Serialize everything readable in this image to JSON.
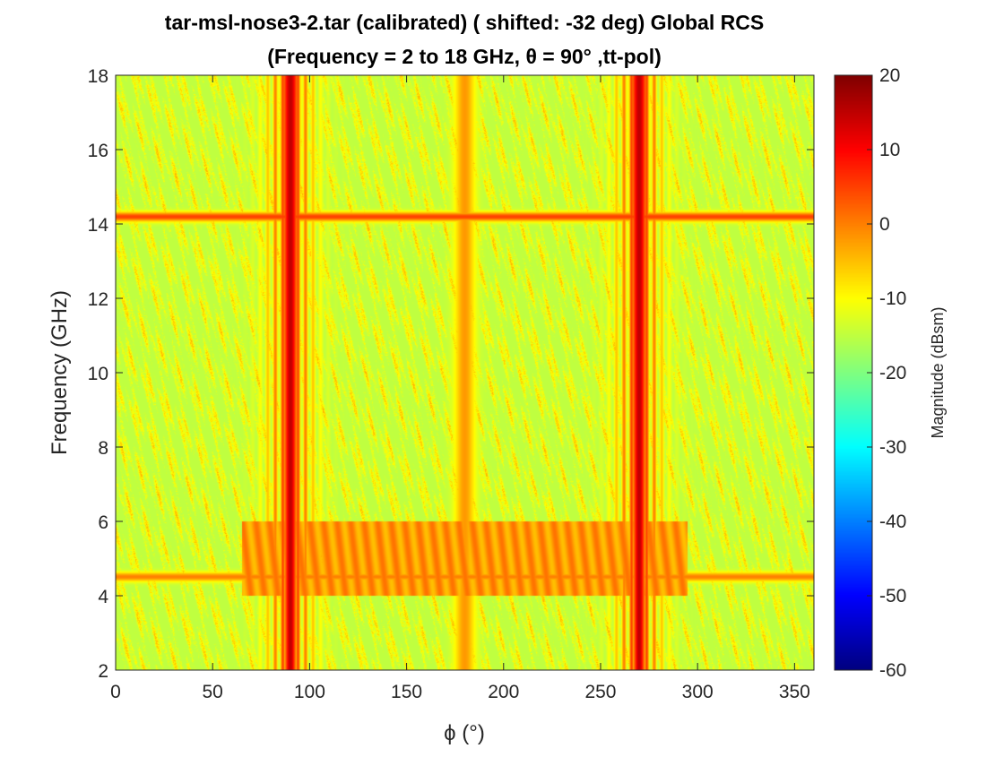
{
  "chart_data": {
    "type": "heatmap",
    "title_lines": [
      "tar-msl-nose3-2.tar (calibrated) ( shifted: -32 deg) Global RCS",
      "(Frequency = 2 to 18 GHz, θ = 90° ,tt-pol)"
    ],
    "xlabel": "ϕ (°)",
    "ylabel": "Frequency (GHz)",
    "xlim": [
      0,
      360
    ],
    "ylim": [
      2,
      18
    ],
    "x_ticks": [
      0,
      50,
      100,
      150,
      200,
      250,
      300,
      350
    ],
    "y_ticks": [
      2,
      4,
      6,
      8,
      10,
      12,
      14,
      16,
      18
    ],
    "colorbar": {
      "label": "Magnitude (dBsm)",
      "range": [
        -60,
        20
      ],
      "ticks": [
        20,
        10,
        0,
        -10,
        -20,
        -30,
        -40,
        -50,
        -60
      ],
      "colormap": "jet"
    },
    "background_level_dbsm": -15,
    "features": [
      {
        "kind": "vertical",
        "name": "broadside-left",
        "phi": 90,
        "freq_range": [
          2,
          18
        ],
        "peak_dbsm": 15
      },
      {
        "kind": "vertical",
        "name": "broadside-right",
        "phi": 270,
        "freq_range": [
          2,
          18
        ],
        "peak_dbsm": 15
      },
      {
        "kind": "vertical",
        "name": "nose-on",
        "phi": 180,
        "freq_range": [
          2,
          18
        ],
        "peak_dbsm": -2
      },
      {
        "kind": "horizontal",
        "name": "band-14.2GHz",
        "freq": 14.2,
        "phi_range": [
          0,
          360
        ],
        "peak_dbsm": 5
      },
      {
        "kind": "horizontal",
        "name": "band-4.5GHz",
        "freq": 4.5,
        "phi_range": [
          0,
          360
        ],
        "peak_dbsm": 0
      },
      {
        "kind": "region",
        "name": "enhanced-4-6GHz",
        "freq_range": [
          4,
          6
        ],
        "phi_range": [
          65,
          295
        ],
        "level_dbsm": -2
      }
    ]
  }
}
